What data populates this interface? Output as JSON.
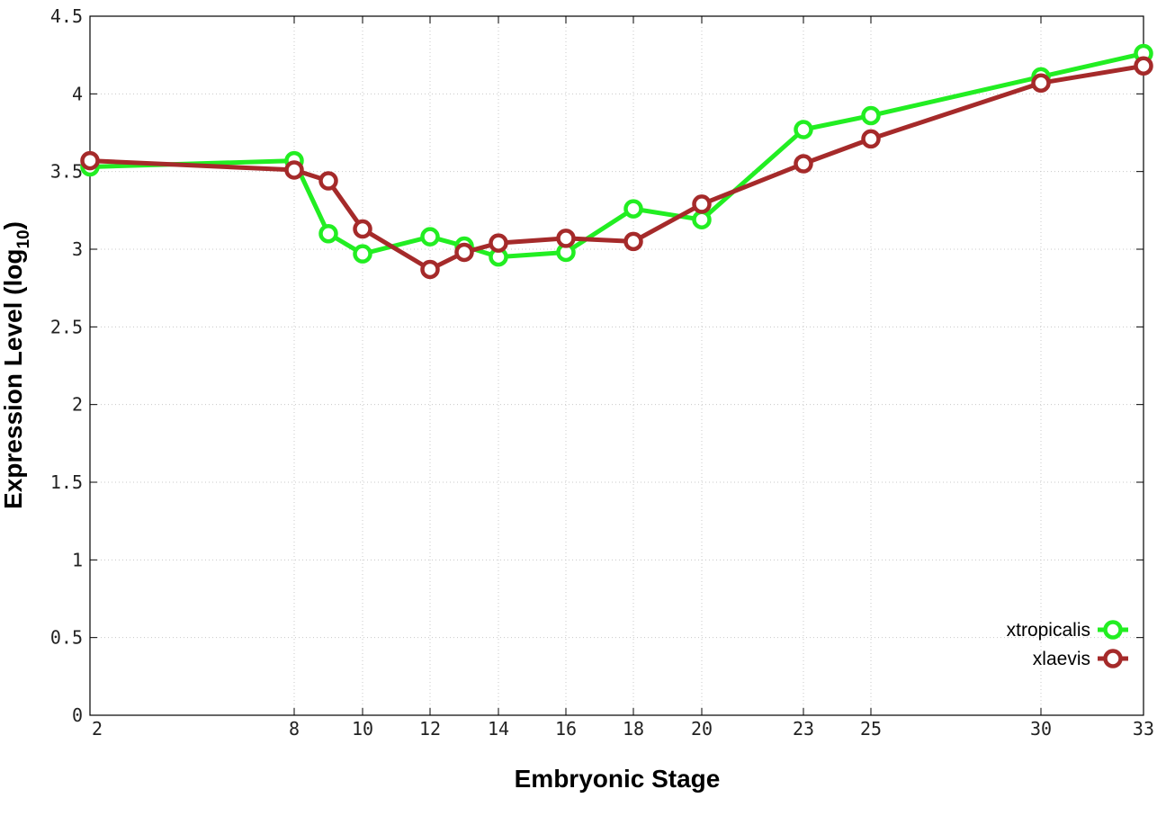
{
  "chart_data": {
    "type": "line",
    "xlabel": "Embryonic Stage",
    "ylabel_main": "Expression Level (log",
    "ylabel_sub": "10",
    "ylabel_close": ")",
    "x_ticks": [
      2,
      8,
      10,
      12,
      14,
      16,
      18,
      20,
      23,
      25,
      30,
      33
    ],
    "y_ticks": [
      "0",
      "0.5",
      "1",
      "1.5",
      "2",
      "2.5",
      "3",
      "3.5",
      "4",
      "4.5"
    ],
    "ylim": [
      0,
      4.5
    ],
    "grid": true,
    "legend_position": "bottom-right",
    "series": [
      {
        "name": "xtropicalis",
        "color": "#22ee22",
        "x": [
          2,
          8,
          9,
          10,
          12,
          13,
          14,
          16,
          18,
          20,
          23,
          25,
          30,
          33
        ],
        "y": [
          3.53,
          3.57,
          3.1,
          2.97,
          3.08,
          3.02,
          2.95,
          2.98,
          3.26,
          3.19,
          3.77,
          3.86,
          4.11,
          4.26
        ]
      },
      {
        "name": "xlaevis",
        "color": "#a52a2a",
        "x": [
          2,
          8,
          9,
          10,
          12,
          13,
          14,
          16,
          18,
          20,
          23,
          25,
          30,
          33
        ],
        "y": [
          3.57,
          3.51,
          3.44,
          3.13,
          2.87,
          2.98,
          3.04,
          3.07,
          3.05,
          3.29,
          3.55,
          3.71,
          4.07,
          4.18
        ]
      }
    ]
  }
}
